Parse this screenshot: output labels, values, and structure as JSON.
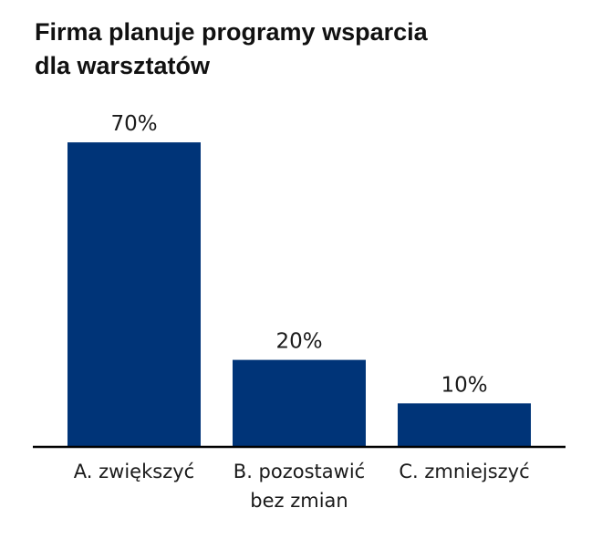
{
  "chart_data": {
    "type": "bar",
    "title": "Firma planuje programy wsparcia dla warsztatów",
    "title_lines": [
      "Firma planuje programy wsparcia",
      "dla warsztatów"
    ],
    "categories": [
      "A. zwiększyć",
      "B. pozostawić bez zmian",
      "C. zmniejszyć"
    ],
    "category_lines": [
      [
        "A. zwiększyć"
      ],
      [
        "B. pozostawić",
        "bez zmian"
      ],
      [
        "C. zmniejszyć"
      ]
    ],
    "values": [
      70,
      20,
      10
    ],
    "value_labels": [
      "70%",
      "20%",
      "10%"
    ],
    "unit": "%",
    "xlabel": "",
    "ylabel": "",
    "ylim": [
      0,
      100
    ],
    "grid": false,
    "legend": "none",
    "bar_color": "#003478",
    "axis_color": "#000000"
  }
}
